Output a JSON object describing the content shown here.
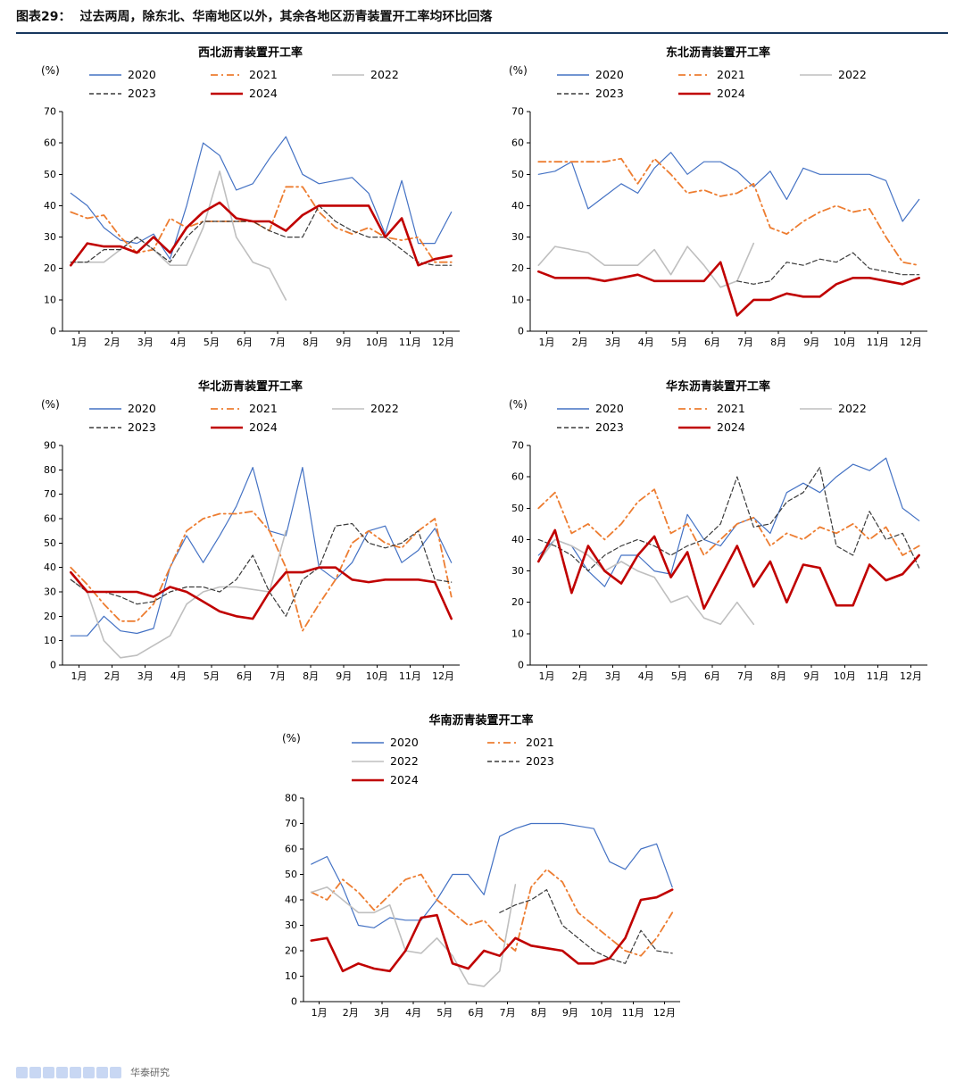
{
  "header": {
    "label": "图表29：",
    "title": "过去两周，除东北、华南地区以外，其余各地区沥青装置开工率均环比回落"
  },
  "footer": {
    "org": "华泰研究"
  },
  "palette": {
    "2020": "#4472C4",
    "2021": "#ED7D31",
    "2022": "#BFBFBF",
    "2023": "#3A3A3A",
    "2024": "#C00000"
  },
  "chart_data": [
    {
      "id": "northwest",
      "type": "line",
      "title": "西北沥青装置开工率",
      "unit": "(%)",
      "ylim": [
        0,
        70
      ],
      "ytick_step": 10,
      "grid": false,
      "x_labels": [
        "1月",
        "2月",
        "3月",
        "4月",
        "5月",
        "6月",
        "7月",
        "8月",
        "9月",
        "10月",
        "11月",
        "12月"
      ],
      "legend_rows": [
        [
          "2020",
          "2021",
          "2022"
        ],
        [
          "2023",
          "2024"
        ]
      ],
      "series": [
        {
          "name": "2020",
          "values": [
            44,
            40,
            33,
            29,
            28,
            31,
            23,
            40,
            60,
            56,
            45,
            47,
            55,
            62,
            50,
            47,
            48,
            49,
            44,
            31,
            48,
            28,
            28,
            38
          ]
        },
        {
          "name": "2021",
          "values": [
            38,
            36,
            37,
            30,
            25,
            26,
            36,
            33,
            35,
            35,
            35,
            35,
            32,
            46,
            46,
            38,
            33,
            31,
            33,
            30,
            29,
            30,
            22,
            22
          ]
        },
        {
          "name": "2022",
          "values": [
            22,
            22,
            22,
            26,
            30,
            26,
            21,
            21,
            33,
            51,
            30,
            22,
            20,
            10,
            null,
            null,
            null,
            null,
            null,
            null,
            null,
            null,
            null,
            null
          ]
        },
        {
          "name": "2023",
          "values": [
            22,
            22,
            26,
            26,
            30,
            26,
            22,
            30,
            35,
            35,
            35,
            35,
            32,
            30,
            30,
            40,
            35,
            32,
            30,
            30,
            26,
            22,
            21,
            21
          ]
        },
        {
          "name": "2024",
          "values": [
            21,
            28,
            27,
            27,
            25,
            30,
            25,
            33,
            38,
            41,
            36,
            35,
            35,
            32,
            37,
            40,
            40,
            40,
            40,
            30,
            36,
            21,
            23,
            24
          ]
        }
      ]
    },
    {
      "id": "northeast",
      "type": "line",
      "title": "东北沥青装置开工率",
      "unit": "(%)",
      "ylim": [
        0,
        70
      ],
      "ytick_step": 10,
      "grid": false,
      "x_labels": [
        "1月",
        "2月",
        "3月",
        "4月",
        "5月",
        "6月",
        "7月",
        "8月",
        "9月",
        "10月",
        "11月",
        "12月"
      ],
      "legend_rows": [
        [
          "2020",
          "2021",
          "2022"
        ],
        [
          "2023",
          "2024"
        ]
      ],
      "series": [
        {
          "name": "2020",
          "values": [
            50,
            51,
            54,
            39,
            43,
            47,
            44,
            52,
            57,
            50,
            54,
            54,
            51,
            46,
            51,
            42,
            52,
            50,
            50,
            50,
            50,
            48,
            35,
            42
          ]
        },
        {
          "name": "2021",
          "values": [
            54,
            54,
            54,
            54,
            54,
            55,
            47,
            55,
            50,
            44,
            45,
            43,
            44,
            47,
            33,
            31,
            35,
            38,
            40,
            38,
            39,
            30,
            22,
            21
          ]
        },
        {
          "name": "2022",
          "values": [
            21,
            27,
            26,
            25,
            21,
            21,
            21,
            26,
            18,
            27,
            21,
            14,
            16,
            28,
            null,
            null,
            null,
            null,
            null,
            null,
            null,
            null,
            null,
            null
          ]
        },
        {
          "name": "2023",
          "values": [
            null,
            null,
            null,
            null,
            null,
            null,
            null,
            null,
            null,
            null,
            null,
            null,
            16,
            15,
            16,
            22,
            21,
            23,
            22,
            25,
            20,
            19,
            18,
            18
          ]
        },
        {
          "name": "2024",
          "values": [
            19,
            17,
            17,
            17,
            16,
            17,
            18,
            16,
            16,
            16,
            16,
            22,
            5,
            10,
            10,
            12,
            11,
            11,
            15,
            17,
            17,
            16,
            15,
            17
          ]
        }
      ]
    },
    {
      "id": "northchina",
      "type": "line",
      "title": "华北沥青装置开工率",
      "unit": "(%)",
      "ylim": [
        0,
        90
      ],
      "ytick_step": 10,
      "grid": false,
      "x_labels": [
        "1月",
        "2月",
        "3月",
        "4月",
        "5月",
        "6月",
        "7月",
        "8月",
        "9月",
        "10月",
        "11月",
        "12月"
      ],
      "legend_rows": [
        [
          "2020",
          "2021",
          "2022"
        ],
        [
          "2023",
          "2024"
        ]
      ],
      "series": [
        {
          "name": "2020",
          "values": [
            12,
            12,
            20,
            14,
            13,
            15,
            40,
            53,
            42,
            53,
            65,
            81,
            55,
            53,
            81,
            40,
            35,
            42,
            55,
            57,
            42,
            47,
            56,
            42
          ]
        },
        {
          "name": "2021",
          "values": [
            40,
            33,
            25,
            18,
            18,
            25,
            40,
            55,
            60,
            62,
            62,
            63,
            55,
            40,
            14,
            25,
            35,
            50,
            55,
            50,
            48,
            55,
            60,
            28
          ]
        },
        {
          "name": "2022",
          "values": [
            35,
            30,
            10,
            3,
            4,
            8,
            12,
            25,
            30,
            32,
            32,
            31,
            30,
            55,
            null,
            null,
            null,
            null,
            null,
            null,
            null,
            null,
            null,
            null
          ]
        },
        {
          "name": "2023",
          "values": [
            35,
            30,
            30,
            28,
            25,
            26,
            30,
            32,
            32,
            30,
            35,
            45,
            30,
            20,
            35,
            40,
            57,
            58,
            50,
            48,
            50,
            55,
            35,
            34
          ]
        },
        {
          "name": "2024",
          "values": [
            38,
            30,
            30,
            30,
            30,
            28,
            32,
            30,
            26,
            22,
            20,
            19,
            30,
            38,
            38,
            40,
            40,
            35,
            34,
            35,
            35,
            35,
            34,
            19
          ]
        }
      ]
    },
    {
      "id": "eastchina",
      "type": "line",
      "title": "华东沥青装置开工率",
      "unit": "(%)",
      "ylim": [
        0,
        70
      ],
      "ytick_step": 10,
      "grid": false,
      "x_labels": [
        "1月",
        "2月",
        "3月",
        "4月",
        "5月",
        "6月",
        "7月",
        "8月",
        "9月",
        "10月",
        "11月",
        "12月"
      ],
      "legend_rows": [
        [
          "2020",
          "2021",
          "2022"
        ],
        [
          "2023",
          "2024"
        ]
      ],
      "series": [
        {
          "name": "2020",
          "values": [
            35,
            40,
            38,
            30,
            25,
            35,
            35,
            30,
            29,
            48,
            40,
            38,
            45,
            47,
            42,
            55,
            58,
            55,
            60,
            64,
            62,
            66,
            50,
            46
          ]
        },
        {
          "name": "2021",
          "values": [
            50,
            55,
            42,
            45,
            40,
            45,
            52,
            56,
            42,
            45,
            35,
            40,
            45,
            47,
            38,
            42,
            40,
            44,
            42,
            45,
            40,
            44,
            35,
            38
          ]
        },
        {
          "name": "2022",
          "values": [
            33,
            40,
            38,
            35,
            30,
            33,
            30,
            28,
            20,
            22,
            15,
            13,
            20,
            13,
            null,
            null,
            null,
            null,
            null,
            null,
            null,
            null,
            null,
            null
          ]
        },
        {
          "name": "2023",
          "values": [
            40,
            38,
            35,
            30,
            35,
            38,
            40,
            38,
            35,
            38,
            40,
            45,
            60,
            44,
            45,
            52,
            55,
            63,
            38,
            35,
            49,
            40,
            42,
            31
          ]
        },
        {
          "name": "2024",
          "values": [
            33,
            43,
            23,
            38,
            30,
            26,
            35,
            41,
            28,
            36,
            18,
            28,
            38,
            25,
            33,
            20,
            32,
            31,
            19,
            19,
            32,
            27,
            29,
            35
          ]
        }
      ]
    },
    {
      "id": "southchina",
      "type": "line",
      "title": "华南沥青装置开工率",
      "unit": "(%)",
      "ylim": [
        0,
        80
      ],
      "ytick_step": 10,
      "grid": false,
      "x_labels": [
        "1月",
        "2月",
        "3月",
        "4月",
        "5月",
        "6月",
        "7月",
        "8月",
        "9月",
        "10月",
        "11月",
        "12月"
      ],
      "legend_rows": [
        [
          "2020",
          "2021"
        ],
        [
          "2022",
          "2023"
        ],
        [
          "2024"
        ]
      ],
      "series": [
        {
          "name": "2020",
          "values": [
            54,
            57,
            45,
            30,
            29,
            33,
            32,
            32,
            40,
            50,
            50,
            42,
            65,
            68,
            70,
            70,
            70,
            69,
            68,
            55,
            52,
            60,
            62,
            45
          ]
        },
        {
          "name": "2021",
          "values": [
            43,
            40,
            48,
            43,
            36,
            42,
            48,
            50,
            40,
            35,
            30,
            32,
            25,
            20,
            45,
            52,
            47,
            35,
            30,
            25,
            20,
            18,
            25,
            35
          ]
        },
        {
          "name": "2022",
          "values": [
            43,
            45,
            40,
            35,
            35,
            38,
            20,
            19,
            25,
            18,
            7,
            6,
            12,
            46,
            null,
            null,
            null,
            null,
            null,
            null,
            null,
            null,
            null,
            null
          ]
        },
        {
          "name": "2023",
          "values": [
            null,
            null,
            null,
            null,
            null,
            null,
            null,
            null,
            null,
            null,
            null,
            null,
            35,
            38,
            40,
            44,
            30,
            25,
            20,
            17,
            15,
            28,
            20,
            19
          ]
        },
        {
          "name": "2024",
          "values": [
            24,
            25,
            12,
            15,
            13,
            12,
            20,
            33,
            34,
            15,
            13,
            20,
            18,
            25,
            22,
            21,
            20,
            15,
            15,
            17,
            25,
            40,
            41,
            44
          ]
        }
      ]
    }
  ]
}
